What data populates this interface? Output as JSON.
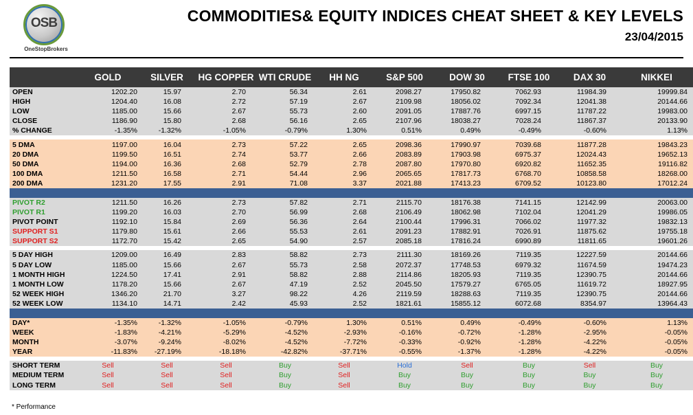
{
  "logo": {
    "mark": "OSB",
    "name": "OneStopBrokers"
  },
  "title": "COMMODITIES& EQUITY INDICES CHEAT SHEET & KEY LEVELS",
  "date": "23/04/2015",
  "columns": [
    "GOLD",
    "SILVER",
    "HG COPPER",
    "WTI CRUDE",
    "HH NG",
    "S&P 500",
    "DOW 30",
    "FTSE 100",
    "DAX 30",
    "NIKKEI"
  ],
  "price_rows": [
    {
      "label": "OPEN",
      "values": [
        "1202.20",
        "15.97",
        "2.70",
        "56.34",
        "2.61",
        "2098.27",
        "17950.82",
        "7062.93",
        "11984.39",
        "19999.84"
      ]
    },
    {
      "label": "HIGH",
      "values": [
        "1204.40",
        "16.08",
        "2.72",
        "57.19",
        "2.67",
        "2109.98",
        "18056.02",
        "7092.34",
        "12041.38",
        "20144.66"
      ]
    },
    {
      "label": "LOW",
      "values": [
        "1185.00",
        "15.66",
        "2.67",
        "55.73",
        "2.60",
        "2091.05",
        "17887.76",
        "6997.15",
        "11787.22",
        "19983.00"
      ]
    },
    {
      "label": "CLOSE",
      "values": [
        "1186.90",
        "15.80",
        "2.68",
        "56.16",
        "2.65",
        "2107.96",
        "18038.27",
        "7028.24",
        "11867.37",
        "20133.90"
      ]
    },
    {
      "label": "% CHANGE",
      "values": [
        "-1.35%",
        "-1.32%",
        "-1.05%",
        "-0.79%",
        "1.30%",
        "0.51%",
        "0.49%",
        "-0.49%",
        "-0.60%",
        "1.13%"
      ]
    }
  ],
  "dma_rows": [
    {
      "label": "5 DMA",
      "values": [
        "1197.00",
        "16.04",
        "2.73",
        "57.22",
        "2.65",
        "2098.36",
        "17990.97",
        "7039.68",
        "11877.28",
        "19843.23"
      ]
    },
    {
      "label": "20 DMA",
      "values": [
        "1199.50",
        "16.51",
        "2.74",
        "53.77",
        "2.66",
        "2083.89",
        "17903.98",
        "6975.37",
        "12024.43",
        "19652.13"
      ]
    },
    {
      "label": "50 DMA",
      "values": [
        "1194.00",
        "16.36",
        "2.68",
        "52.79",
        "2.78",
        "2087.80",
        "17970.80",
        "6920.82",
        "11652.35",
        "19116.82"
      ]
    },
    {
      "label": "100 DMA",
      "values": [
        "1211.50",
        "16.58",
        "2.71",
        "54.44",
        "2.96",
        "2065.65",
        "17817.73",
        "6768.70",
        "10858.58",
        "18268.00"
      ]
    },
    {
      "label": "200 DMA",
      "values": [
        "1231.20",
        "17.55",
        "2.91",
        "71.08",
        "3.37",
        "2021.88",
        "17413.23",
        "6709.52",
        "10123.80",
        "17012.24"
      ]
    }
  ],
  "pivot_rows": [
    {
      "label": "PIVOT R2",
      "color": "green",
      "values": [
        "1211.50",
        "16.26",
        "2.73",
        "57.82",
        "2.71",
        "2115.70",
        "18176.38",
        "7141.15",
        "12142.99",
        "20063.00"
      ]
    },
    {
      "label": "PIVOT R1",
      "color": "green",
      "values": [
        "1199.20",
        "16.03",
        "2.70",
        "56.99",
        "2.68",
        "2106.49",
        "18062.98",
        "7102.04",
        "12041.29",
        "19986.05"
      ]
    },
    {
      "label": "PIVOT POINT",
      "color": "black",
      "values": [
        "1192.10",
        "15.84",
        "2.69",
        "56.36",
        "2.64",
        "2100.44",
        "17996.31",
        "7066.02",
        "11977.32",
        "19832.13"
      ]
    },
    {
      "label": "SUPPORT S1",
      "color": "red",
      "values": [
        "1179.80",
        "15.61",
        "2.66",
        "55.53",
        "2.61",
        "2091.23",
        "17882.91",
        "7026.91",
        "11875.62",
        "19755.18"
      ]
    },
    {
      "label": "SUPPORT S2",
      "color": "red",
      "values": [
        "1172.70",
        "15.42",
        "2.65",
        "54.90",
        "2.57",
        "2085.18",
        "17816.24",
        "6990.89",
        "11811.65",
        "19601.26"
      ]
    }
  ],
  "range_rows": [
    {
      "label": "5 DAY HIGH",
      "values": [
        "1209.00",
        "16.49",
        "2.83",
        "58.82",
        "2.73",
        "2111.30",
        "18169.26",
        "7119.35",
        "12227.59",
        "20144.66"
      ]
    },
    {
      "label": "5 DAY LOW",
      "values": [
        "1185.00",
        "15.66",
        "2.67",
        "55.73",
        "2.58",
        "2072.37",
        "17748.53",
        "6979.32",
        "11674.59",
        "19474.23"
      ]
    },
    {
      "label": "1 MONTH HIGH",
      "values": [
        "1224.50",
        "17.41",
        "2.91",
        "58.82",
        "2.88",
        "2114.86",
        "18205.93",
        "7119.35",
        "12390.75",
        "20144.66"
      ]
    },
    {
      "label": "1 MONTH LOW",
      "values": [
        "1178.20",
        "15.66",
        "2.67",
        "47.19",
        "2.52",
        "2045.50",
        "17579.27",
        "6765.05",
        "11619.72",
        "18927.95"
      ]
    },
    {
      "label": "52 WEEK HIGH",
      "values": [
        "1346.20",
        "21.70",
        "3.27",
        "98.22",
        "4.26",
        "2119.59",
        "18288.63",
        "7119.35",
        "12390.75",
        "20144.66"
      ]
    },
    {
      "label": "52 WEEK LOW",
      "values": [
        "1134.10",
        "14.71",
        "2.42",
        "45.93",
        "2.52",
        "1821.61",
        "15855.12",
        "6072.68",
        "8354.97",
        "13964.43"
      ]
    }
  ],
  "performance_rows": [
    {
      "label": "DAY*",
      "values": [
        "-1.35%",
        "-1.32%",
        "-1.05%",
        "-0.79%",
        "1.30%",
        "0.51%",
        "0.49%",
        "-0.49%",
        "-0.60%",
        "1.13%"
      ]
    },
    {
      "label": "WEEK",
      "values": [
        "-1.83%",
        "-4.21%",
        "-5.29%",
        "-4.52%",
        "-2.93%",
        "-0.16%",
        "-0.72%",
        "-1.28%",
        "-2.95%",
        "-0.05%"
      ]
    },
    {
      "label": "MONTH",
      "values": [
        "-3.07%",
        "-9.24%",
        "-8.02%",
        "-4.52%",
        "-7.72%",
        "-0.33%",
        "-0.92%",
        "-1.28%",
        "-4.22%",
        "-0.05%"
      ]
    },
    {
      "label": "YEAR",
      "values": [
        "-11.83%",
        "-27.19%",
        "-18.18%",
        "-42.82%",
        "-37.71%",
        "-0.55%",
        "-1.37%",
        "-1.28%",
        "-4.22%",
        "-0.05%"
      ]
    }
  ],
  "signal_rows": [
    {
      "label": "SHORT TERM",
      "values": [
        "Sell",
        "Sell",
        "Sell",
        "Buy",
        "Sell",
        "Hold",
        "Sell",
        "Buy",
        "Sell",
        "Buy"
      ]
    },
    {
      "label": "MEDIUM TERM",
      "values": [
        "Sell",
        "Sell",
        "Sell",
        "Buy",
        "Sell",
        "Buy",
        "Buy",
        "Buy",
        "Buy",
        "Buy"
      ]
    },
    {
      "label": "LONG TERM",
      "values": [
        "Sell",
        "Sell",
        "Sell",
        "Buy",
        "Sell",
        "Buy",
        "Buy",
        "Buy",
        "Buy",
        "Buy"
      ]
    }
  ],
  "colors": {
    "sell": "#e02020",
    "buy": "#2f9e2f",
    "hold": "#2a6fd6",
    "separator": "#3b5f93",
    "header": "#3a3a3a",
    "grey": "#d9d9d9",
    "peach": "#fbd5b5"
  },
  "footnote": "* Performance"
}
